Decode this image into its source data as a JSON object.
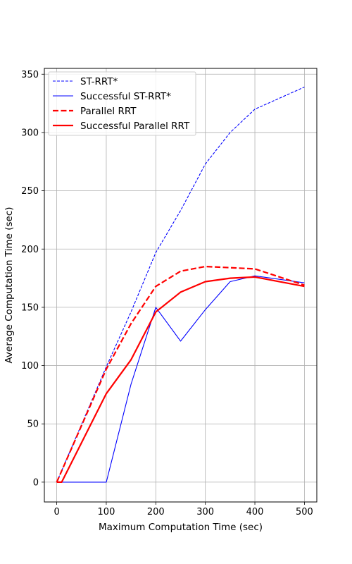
{
  "chart_data": {
    "type": "line",
    "title": "",
    "xlabel": "Maximum Computation Time (sec)",
    "ylabel": "Average Computation Time (sec)",
    "xlim": [
      -25,
      525
    ],
    "ylim": [
      -17,
      355
    ],
    "xticks": [
      0,
      100,
      200,
      300,
      400,
      500
    ],
    "yticks": [
      0,
      50,
      100,
      150,
      200,
      250,
      300,
      350
    ],
    "grid": true,
    "legend_position": "upper left",
    "series": [
      {
        "name": "ST-RRT*",
        "color": "#0000ff",
        "line_style": "dashed",
        "line_width": "thin",
        "x": [
          0,
          100,
          150,
          200,
          250,
          300,
          350,
          400,
          500
        ],
        "y": [
          0,
          99,
          146,
          197,
          233,
          273,
          300,
          320,
          339
        ]
      },
      {
        "name": "Successful ST-RRT*",
        "color": "#0000ff",
        "line_style": "solid",
        "line_width": "thin",
        "x": [
          0,
          100,
          150,
          200,
          250,
          300,
          350,
          400,
          500
        ],
        "y": [
          0,
          0,
          84,
          150,
          121,
          148,
          172,
          177,
          171
        ]
      },
      {
        "name": "Parallel RRT",
        "color": "#ff0000",
        "line_style": "dashed",
        "line_width": "thick",
        "x": [
          0,
          100,
          150,
          200,
          250,
          300,
          350,
          400,
          500
        ],
        "y": [
          0,
          97,
          136,
          168,
          181,
          185,
          184,
          183,
          169
        ]
      },
      {
        "name": "Successful Parallel RRT",
        "color": "#ff0000",
        "line_style": "solid",
        "line_width": "thick",
        "x": [
          0,
          10,
          100,
          150,
          200,
          250,
          300,
          350,
          400,
          500
        ],
        "y": [
          0,
          0,
          76,
          105,
          146,
          163,
          172,
          175,
          176,
          168
        ]
      }
    ]
  }
}
